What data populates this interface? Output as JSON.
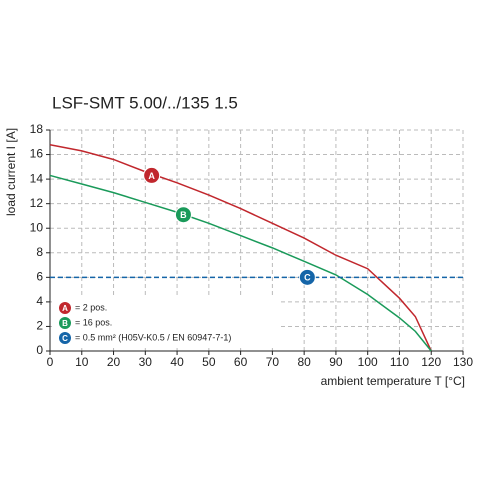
{
  "chart_data": {
    "type": "line",
    "title": "LSF-SMT 5.00/../135 1.5",
    "ylabel": "load current I [A]",
    "xlabel": "ambient temperature T [°C]",
    "xlim": [
      0,
      130
    ],
    "ylim": [
      0,
      18
    ],
    "xticks": [
      0,
      10,
      20,
      30,
      40,
      50,
      60,
      70,
      80,
      90,
      100,
      110,
      120,
      130
    ],
    "yticks": [
      0,
      2,
      4,
      6,
      8,
      10,
      12,
      14,
      16,
      18
    ],
    "grid": true,
    "series": [
      {
        "name": "= 2 pos.",
        "marker": "A",
        "color": "#c1272d",
        "dashed": false,
        "x": [
          0,
          10,
          20,
          30,
          40,
          50,
          60,
          70,
          80,
          90,
          100,
          110,
          115,
          120
        ],
        "values": [
          16.8,
          16.3,
          15.6,
          14.6,
          13.7,
          12.7,
          11.6,
          10.4,
          9.2,
          7.8,
          6.7,
          4.3,
          2.8,
          0
        ],
        "marker_x": 32,
        "marker_y": 14.3
      },
      {
        "name": "= 16 pos.",
        "marker": "B",
        "color": "#1a9a5a",
        "dashed": false,
        "x": [
          0,
          10,
          20,
          30,
          40,
          50,
          60,
          70,
          80,
          90,
          100,
          110,
          115,
          120
        ],
        "values": [
          14.3,
          13.6,
          12.9,
          12.1,
          11.3,
          10.4,
          9.4,
          8.4,
          7.3,
          6.2,
          4.6,
          2.7,
          1.6,
          0
        ],
        "marker_x": 42,
        "marker_y": 11.1
      },
      {
        "name": "= 0.5 mm² (H05V-K0.5 / EN 60947-7-1)",
        "marker": "C",
        "color": "#1565a8",
        "dashed": true,
        "x": [
          0,
          130
        ],
        "values": [
          6,
          6
        ],
        "marker_x": 81,
        "marker_y": 6
      }
    ]
  }
}
